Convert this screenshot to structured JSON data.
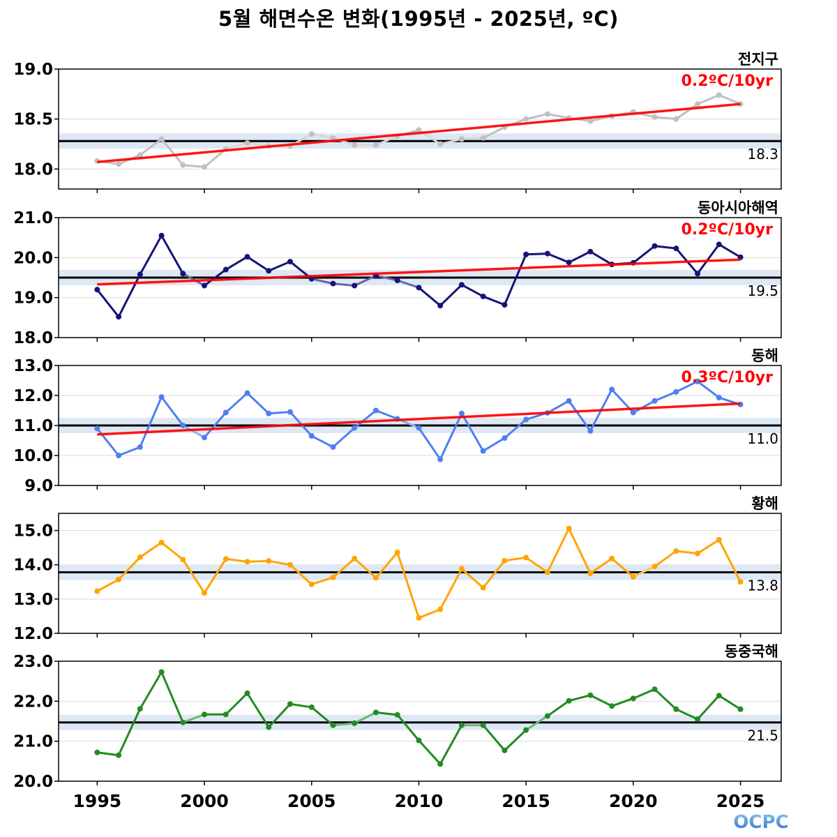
{
  "title": "5월 해면수온 변화(1995년 - 2025년, ºC)",
  "logo_text": "OCPC",
  "colors": {
    "trend": "#ff0000",
    "mean_line": "#000000",
    "band": "#dde8f4",
    "grid": "#d9d9d9"
  },
  "chart_data": {
    "type": "line",
    "x_ticks": [
      1995,
      2000,
      2005,
      2010,
      2015,
      2020,
      2025
    ],
    "x": [
      1995,
      1996,
      1997,
      1998,
      1999,
      2000,
      2001,
      2002,
      2003,
      2004,
      2005,
      2006,
      2007,
      2008,
      2009,
      2010,
      2011,
      2012,
      2013,
      2014,
      2015,
      2016,
      2017,
      2018,
      2019,
      2020,
      2021,
      2022,
      2023,
      2024,
      2025
    ],
    "xlim": [
      1993.2,
      2026.9
    ],
    "panels": [
      {
        "region": "전지구",
        "color": "#c0c0c0",
        "ylim": [
          17.8,
          19.0
        ],
        "y_ticks": [
          "18.0",
          "18.5",
          "19.0"
        ],
        "mean": 18.28,
        "mean_label": "18.3",
        "trend_label": "0.2ºC/10yr",
        "trend": [
          18.07,
          18.65
        ],
        "values": [
          18.08,
          18.05,
          18.14,
          18.3,
          18.04,
          18.02,
          18.2,
          18.26,
          18.23,
          18.23,
          18.35,
          18.31,
          18.24,
          18.24,
          18.33,
          18.39,
          18.25,
          18.3,
          18.31,
          18.42,
          18.5,
          18.55,
          18.51,
          18.48,
          18.53,
          18.57,
          18.52,
          18.5,
          18.65,
          18.74,
          18.65
        ]
      },
      {
        "region": "동아시아해역",
        "color": "#141478",
        "ylim": [
          18.0,
          21.0
        ],
        "y_ticks": [
          "18.0",
          "19.0",
          "20.0",
          "21.0"
        ],
        "mean": 19.5,
        "mean_label": "19.5",
        "trend_label": "0.2ºC/10yr",
        "trend": [
          19.33,
          19.95
        ],
        "values": [
          19.2,
          18.52,
          19.58,
          20.55,
          19.6,
          19.3,
          19.7,
          20.02,
          19.67,
          19.9,
          19.47,
          19.35,
          19.3,
          19.55,
          19.43,
          19.25,
          18.8,
          19.32,
          19.03,
          18.82,
          20.08,
          20.1,
          19.88,
          20.15,
          19.83,
          19.87,
          20.29,
          20.23,
          19.6,
          20.33,
          20.01
        ]
      },
      {
        "region": "동해",
        "color": "#4f7ff0",
        "ylim": [
          9.0,
          13.0
        ],
        "y_ticks": [
          "9.0",
          "10.0",
          "11.0",
          "12.0",
          "13.0"
        ],
        "mean": 11.0,
        "mean_label": "11.0",
        "trend_label": "0.3ºC/10yr",
        "trend": [
          10.7,
          11.73
        ],
        "values": [
          10.9,
          10.0,
          10.28,
          11.95,
          11.0,
          10.6,
          11.43,
          12.08,
          11.4,
          11.45,
          10.65,
          10.28,
          10.92,
          11.5,
          11.22,
          10.92,
          9.87,
          11.4,
          10.15,
          10.58,
          11.2,
          11.42,
          11.82,
          10.82,
          12.2,
          11.43,
          11.82,
          12.12,
          12.47,
          11.93,
          11.7
        ]
      },
      {
        "region": "황해",
        "color": "#ffa500",
        "ylim": [
          12.0,
          15.5
        ],
        "y_ticks": [
          "12.0",
          "13.0",
          "14.0",
          "15.0"
        ],
        "mean": 13.78,
        "mean_label": "13.8",
        "trend_label": "",
        "trend": [],
        "values": [
          13.23,
          13.57,
          14.22,
          14.65,
          14.15,
          13.18,
          14.17,
          14.09,
          14.11,
          14.0,
          13.43,
          13.63,
          14.18,
          13.62,
          14.36,
          12.45,
          12.7,
          13.88,
          13.33,
          14.12,
          14.21,
          13.78,
          15.06,
          13.75,
          14.18,
          13.65,
          13.95,
          14.4,
          14.33,
          14.73,
          13.5
        ]
      },
      {
        "region": "동중국해",
        "color": "#228b22",
        "ylim": [
          20.0,
          23.0
        ],
        "y_ticks": [
          "20.0",
          "21.0",
          "22.0",
          "23.0"
        ],
        "mean": 21.47,
        "mean_label": "21.5",
        "trend_label": "",
        "trend": [],
        "values": [
          20.72,
          20.65,
          21.81,
          22.73,
          21.47,
          21.67,
          21.67,
          22.2,
          21.35,
          21.93,
          21.85,
          21.4,
          21.45,
          21.72,
          21.66,
          21.02,
          20.43,
          21.4,
          21.4,
          20.77,
          21.28,
          21.63,
          22.01,
          22.15,
          21.88,
          22.07,
          22.3,
          21.8,
          21.55,
          22.14,
          21.8
        ]
      }
    ]
  }
}
